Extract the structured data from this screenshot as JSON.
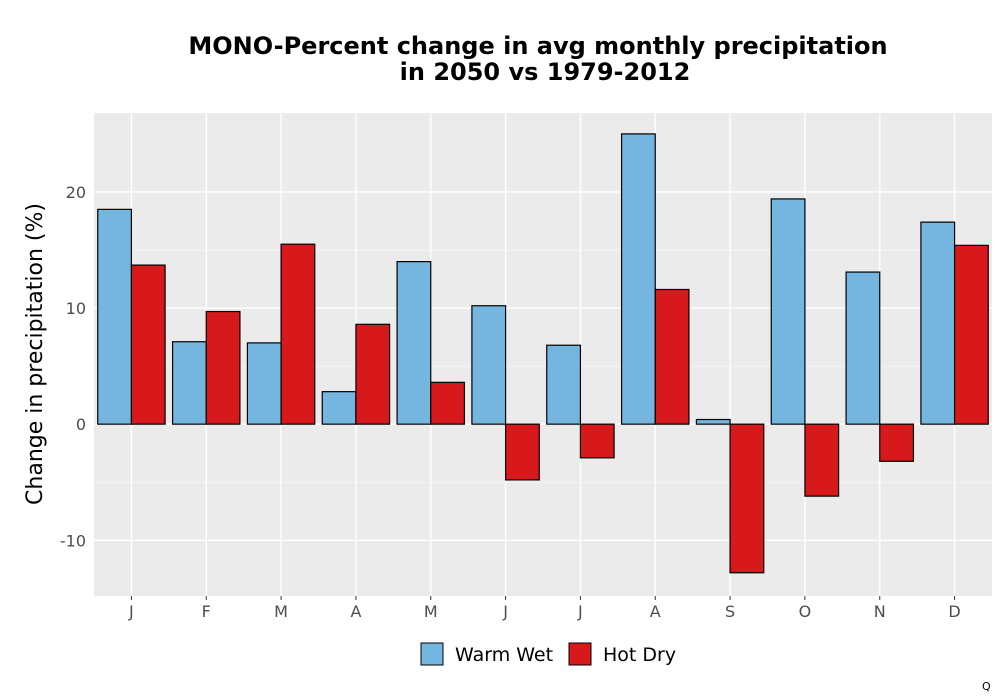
{
  "chart_data": {
    "type": "bar",
    "title_lines": [
      "MONO-Percent change in avg monthly precipitation",
      "in 2050 vs 1979-2012"
    ],
    "xlabel": "",
    "ylabel": "Change in precipitation (%)",
    "categories": [
      "J",
      "F",
      "M",
      "A",
      "M",
      "J",
      "J",
      "A",
      "S",
      "O",
      "N",
      "D"
    ],
    "series": [
      {
        "name": "Warm Wet",
        "color": "#74b6e0",
        "values": [
          18.5,
          7.1,
          7.0,
          2.8,
          14.0,
          10.2,
          6.8,
          25.0,
          0.4,
          19.4,
          13.1,
          17.4
        ]
      },
      {
        "name": "Hot Dry",
        "color": "#d7191c",
        "values": [
          13.7,
          9.7,
          15.5,
          8.6,
          3.6,
          -4.8,
          -2.9,
          11.6,
          -12.8,
          -6.2,
          -3.2,
          15.4
        ]
      }
    ],
    "yticks": [
      -10,
      0,
      10,
      20
    ],
    "ylim": [
      -14.8,
      26.8
    ],
    "grid": true,
    "legend_position": "bottom",
    "background": "#ebebeb"
  },
  "corner_mark": "Q"
}
